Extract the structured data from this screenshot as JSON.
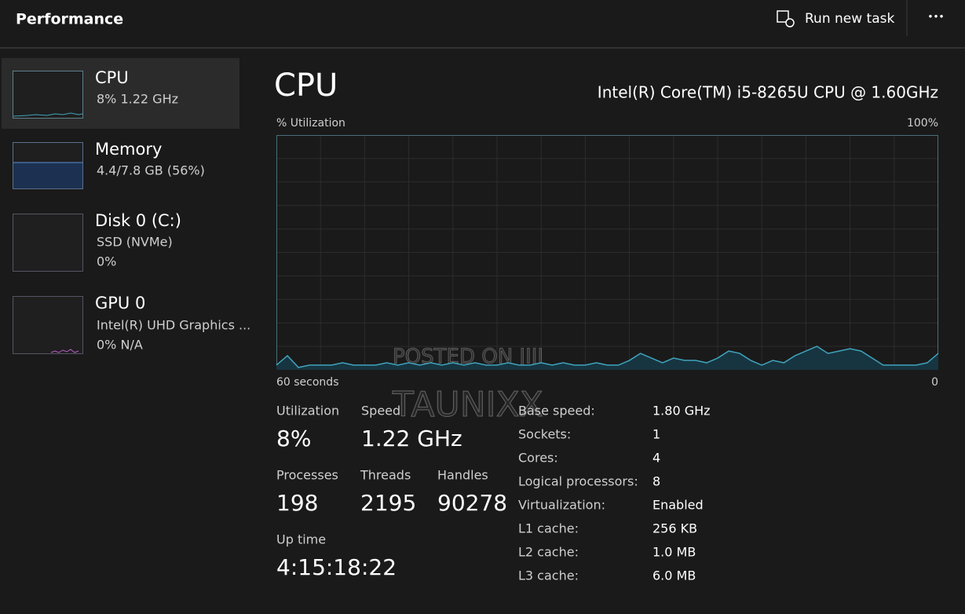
{
  "header": {
    "title": "Performance",
    "run_new_task": "Run new task",
    "more": "•••"
  },
  "sidebar": [
    {
      "name": "CPU",
      "detail": "8%  1.22 GHz"
    },
    {
      "name": "Memory",
      "detail": "4.4/7.8 GB (56%)"
    },
    {
      "name": "Disk 0 (C:)",
      "detail": "SSD (NVMe)",
      "detail2": "0%"
    },
    {
      "name": "GPU 0",
      "detail": "Intel(R) UHD Graphics ...",
      "detail2": "0%  N/A"
    }
  ],
  "main": {
    "title": "CPU",
    "model": "Intel(R) Core(TM) i5-8265U CPU @ 1.60GHz",
    "graph": {
      "y_label": "% Utilization",
      "max_label": "100%",
      "x_left_label": "60 seconds",
      "x_right_label": "0",
      "ylim": [
        0,
        100
      ],
      "values": [
        2,
        6,
        1,
        2,
        2,
        2,
        3,
        2,
        2,
        2,
        3,
        2,
        3,
        2,
        3,
        2,
        3,
        2,
        3,
        2,
        2,
        3,
        2,
        2,
        3,
        2,
        3,
        2,
        2,
        3,
        2,
        2,
        4,
        7,
        5,
        3,
        5,
        4,
        4,
        3,
        5,
        8,
        7,
        4,
        2,
        4,
        3,
        6,
        8,
        10,
        7,
        8,
        9,
        8,
        5,
        2,
        2,
        2,
        2,
        3,
        7
      ]
    },
    "stats": [
      {
        "label": "Utilization",
        "value": "8%"
      },
      {
        "label": "Speed",
        "value": "1.22 GHz"
      },
      {
        "label": "Processes",
        "value": "198"
      },
      {
        "label": "Threads",
        "value": "2195"
      },
      {
        "label": "Handles",
        "value": "90278"
      },
      {
        "label": "Up time",
        "value": "4:15:18:22"
      }
    ],
    "specs": [
      [
        "Base speed:",
        "1.80 GHz"
      ],
      [
        "Sockets:",
        "1"
      ],
      [
        "Cores:",
        "4"
      ],
      [
        "Logical processors:",
        "8"
      ],
      [
        "Virtualization:",
        "Enabled"
      ],
      [
        "L1 cache:",
        "256 KB"
      ],
      [
        "L2 cache:",
        "1.0 MB"
      ],
      [
        "L3 cache:",
        "6.0 MB"
      ]
    ]
  },
  "watermark": [
    "POSTED ON JIJI",
    "TAUNIXX"
  ]
}
